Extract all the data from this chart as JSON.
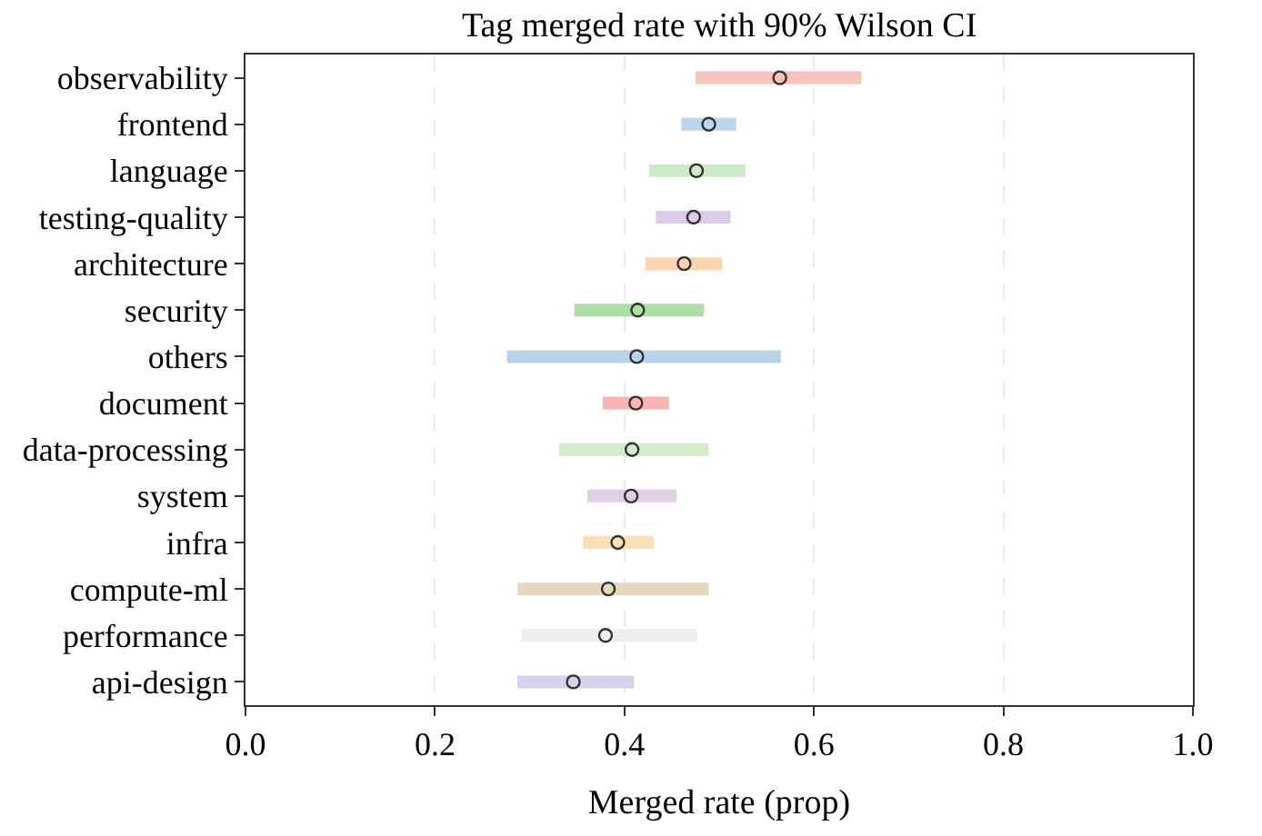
{
  "chart_data": {
    "type": "scatter",
    "title": "Tag merged rate with 90% Wilson CI",
    "xlabel": "Merged rate (prop)",
    "orientation": "horizontal",
    "categories": [
      "observability",
      "frontend",
      "language",
      "testing-quality",
      "architecture",
      "security",
      "others",
      "document",
      "data-processing",
      "system",
      "infra",
      "compute-ml",
      "performance",
      "api-design"
    ],
    "values": [
      0.564,
      0.489,
      0.476,
      0.473,
      0.463,
      0.414,
      0.413,
      0.412,
      0.408,
      0.407,
      0.393,
      0.383,
      0.38,
      0.346
    ],
    "errors": [
      [
        0.475,
        0.65
      ],
      [
        0.46,
        0.518
      ],
      [
        0.426,
        0.528
      ],
      [
        0.433,
        0.512
      ],
      [
        0.422,
        0.503
      ],
      [
        0.347,
        0.484
      ],
      [
        0.276,
        0.565
      ],
      [
        0.377,
        0.447
      ],
      [
        0.331,
        0.489
      ],
      [
        0.361,
        0.455
      ],
      [
        0.356,
        0.431
      ],
      [
        0.287,
        0.489
      ],
      [
        0.291,
        0.477
      ],
      [
        0.287,
        0.41
      ]
    ],
    "colors": [
      "#f8c3b8",
      "#bcd7ea",
      "#cfeac8",
      "#dccbe9",
      "#fdd4ac",
      "#addea3",
      "#b8d2e6",
      "#f9b5b3",
      "#d3ecc9",
      "#e1cfe6",
      "#fde0b5",
      "#e6d8bd",
      "#efefef",
      "#d3d3e9"
    ],
    "xlim": [
      0.0,
      1.0
    ],
    "xticks": [
      {
        "value": 0,
        "label": "0.0"
      },
      {
        "value": 0.2,
        "label": "0.2"
      },
      {
        "value": 0.4,
        "label": "0.4"
      },
      {
        "value": 0.6,
        "label": "0.6"
      },
      {
        "value": 0.8,
        "label": "0.8"
      },
      {
        "value": 1,
        "label": "1.0"
      }
    ],
    "grid": "x",
    "marker": "circle"
  }
}
